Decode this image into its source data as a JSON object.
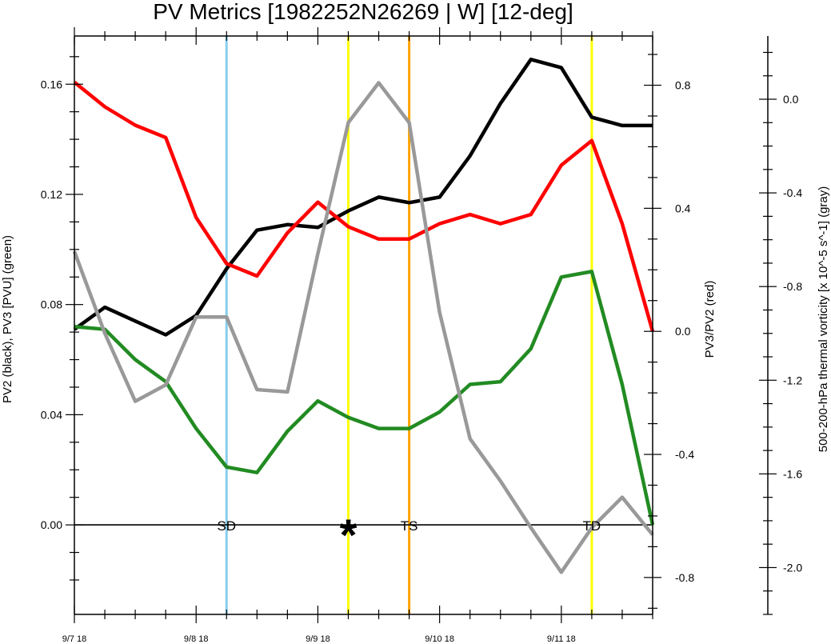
{
  "chart_data": {
    "type": "line",
    "title": "PV Metrics [1982252N26269 | W] [12-deg]",
    "x_ticks": [
      "9/7 18",
      "9/8 18",
      "9/9 18",
      "9/10 18",
      "9/11 18"
    ],
    "x_range_hours": [
      0,
      114
    ],
    "axes": {
      "left": {
        "label": "PV2 (black), PV3 [PVU] (green)",
        "range": [
          -0.0325,
          0.1775
        ],
        "ticks": [
          "0.00",
          "0.04",
          "0.08",
          "0.12",
          "0.16"
        ],
        "tick_values": [
          0,
          0.04,
          0.08,
          0.12,
          0.16
        ]
      },
      "right": {
        "label": "PV3/PV2 (red)",
        "range": [
          -0.92,
          0.96
        ],
        "ticks": [
          "-0.8",
          "-0.4",
          "0.0",
          "0.4",
          "0.8"
        ],
        "tick_values": [
          -0.8,
          -0.4,
          0,
          0.4,
          0.8
        ]
      },
      "far_right": {
        "label": "500-200-hPa thermal vorticity [x 10^-5 s^-1] (gray)",
        "range": [
          -2.2,
          0.27
        ],
        "ticks": [
          "-2.0",
          "-1.6",
          "-1.2",
          "-0.8",
          "-0.4",
          "0.0"
        ],
        "tick_values": [
          -2.0,
          -1.6,
          -1.2,
          -0.8,
          -0.4,
          0.0
        ]
      }
    },
    "x_hours": [
      0,
      6,
      12,
      18,
      24,
      30,
      36,
      42,
      48,
      54,
      60,
      66,
      72,
      78,
      84,
      90,
      96,
      102,
      108,
      114
    ],
    "series": [
      {
        "color": "#000000",
        "axis": "left",
        "values": [
          0.071,
          0.079,
          0.074,
          0.069,
          0.076,
          0.093,
          0.107,
          0.109,
          0.108,
          0.114,
          0.119,
          0.117,
          0.119,
          0.134,
          0.153,
          0.169,
          0.166,
          0.148,
          0.145,
          0.145
        ]
      },
      {
        "color": "#228b22",
        "axis": "left",
        "values": [
          0.072,
          0.071,
          0.06,
          0.052,
          0.035,
          0.021,
          0.019,
          0.034,
          0.045,
          0.039,
          0.035,
          0.035,
          0.041,
          0.051,
          0.052,
          0.064,
          0.09,
          0.092,
          0.051,
          0.0
        ]
      },
      {
        "color": "#ff0000",
        "axis": "right",
        "values": [
          0.81,
          0.73,
          0.67,
          0.63,
          0.37,
          0.22,
          0.18,
          0.32,
          0.42,
          0.34,
          0.3,
          0.3,
          0.35,
          0.38,
          0.35,
          0.38,
          0.54,
          0.62,
          0.35,
          0.0
        ]
      },
      {
        "color": "#999999",
        "axis": "far_right",
        "values": [
          -0.65,
          -1.0,
          -1.29,
          -1.22,
          -0.93,
          -0.93,
          -1.24,
          -1.25,
          -0.66,
          -0.1,
          0.07,
          -0.1,
          -0.91,
          -1.45,
          -1.63,
          -1.83,
          -2.02,
          -1.83,
          -1.7,
          -1.86
        ]
      }
    ],
    "vertical_lines": [
      {
        "hour": 30,
        "color": "#87ceeb"
      },
      {
        "hour": 54,
        "color": "#ffff00"
      },
      {
        "hour": 66,
        "color": "#ffa500"
      },
      {
        "hour": 102,
        "color": "#ffff00"
      }
    ],
    "event_labels": [
      {
        "text": "SD",
        "hour": 30
      },
      {
        "text": "TS",
        "hour": 66
      },
      {
        "text": "TD",
        "hour": 102
      }
    ],
    "marker": {
      "text": "*",
      "hour": 54
    },
    "zero_line_value": 0.0
  }
}
